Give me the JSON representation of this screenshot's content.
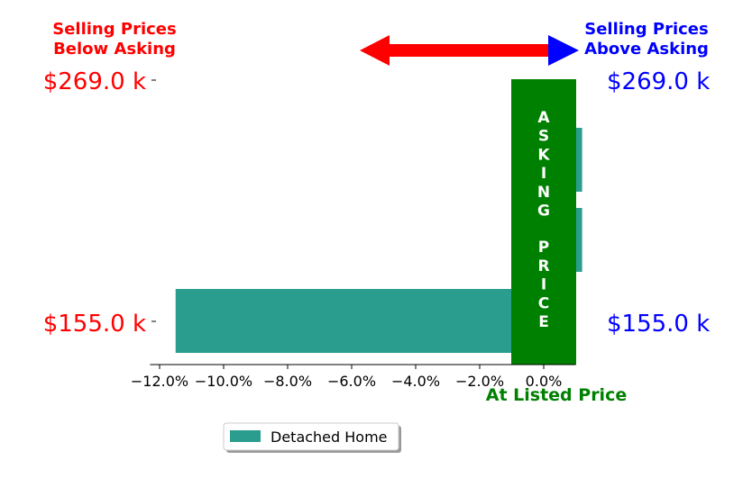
{
  "chart_data": {
    "type": "bar",
    "orientation": "horizontal",
    "x": {
      "min": -12.3,
      "max": 1.0,
      "ticks": [
        -12,
        -10,
        -8,
        -6,
        -4,
        -2,
        0
      ],
      "tick_labels": [
        "−12.0%",
        "−10.0%",
        "−8.0%",
        "−6.0%",
        "−4.0%",
        "−2.0%",
        "0.0%"
      ]
    },
    "series": [
      {
        "name": "Detached Home",
        "color": "#2a9d8f",
        "values": [
          -11.5,
          1.2,
          1.2
        ]
      }
    ],
    "left_labels": {
      "title": "Selling Prices\nBelow Asking",
      "top": "$269.0 k",
      "bottom": "$155.0 k",
      "color": "#ff0000"
    },
    "right_labels": {
      "title": "Selling Prices\nAbove Asking",
      "top": "$269.0 k",
      "bottom": "$155.0 k",
      "color": "#0000ff"
    },
    "asking_band": {
      "text": "ASKING PRICE",
      "color": "#008000"
    },
    "xlabel": "At Listed Price",
    "xlabel_color": "#008000",
    "arrow_left_color": "#ff0000",
    "arrow_right_color": "#0000ff",
    "legend": {
      "placement": "bottom-center",
      "entries": [
        "Detached Home"
      ]
    }
  }
}
